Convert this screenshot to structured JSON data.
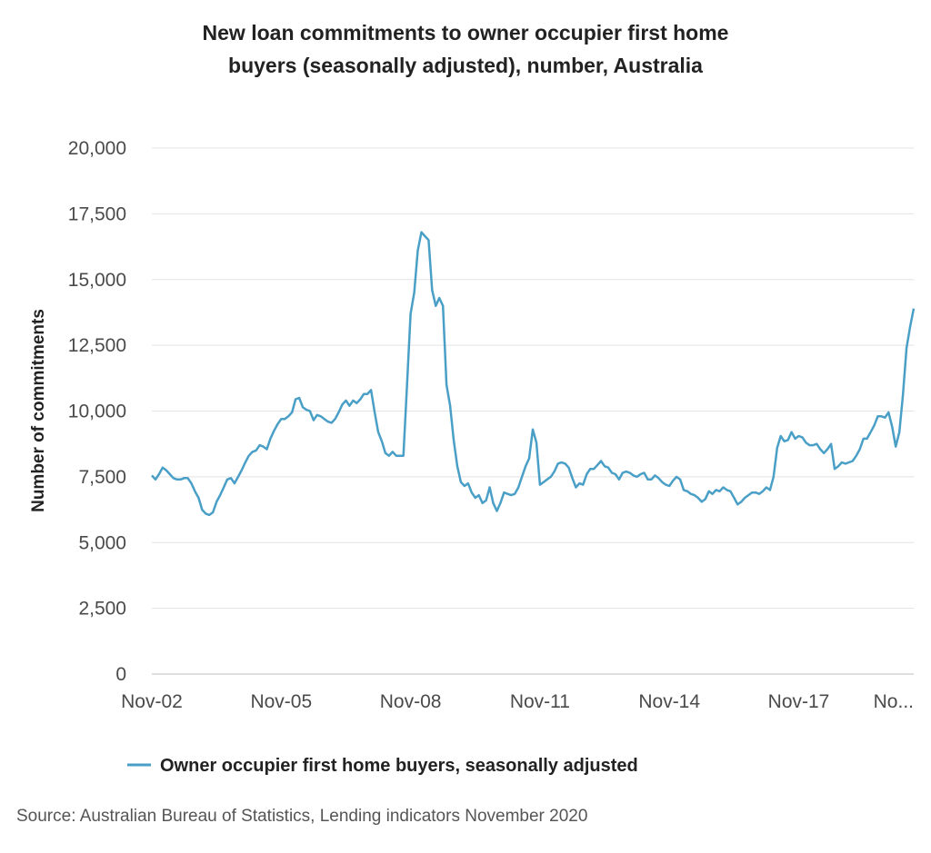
{
  "chart_data": {
    "type": "line",
    "title_lines": [
      "New loan commitments to owner occupier first home",
      "buyers (seasonally adjusted), number, Australia"
    ],
    "xlabel": "",
    "ylabel": "Number of commitments",
    "ylim": [
      0,
      20000
    ],
    "y_ticks": [
      0,
      2500,
      5000,
      7500,
      10000,
      12500,
      15000,
      17500,
      20000
    ],
    "y_tick_labels": [
      "0",
      "2,500",
      "5,000",
      "7,500",
      "10,000",
      "12,500",
      "15,000",
      "17,500",
      "20,000"
    ],
    "x_tick_labels": [
      "Nov-02",
      "Nov-05",
      "Nov-08",
      "Nov-11",
      "Nov-14",
      "Nov-17",
      "No..."
    ],
    "x_tick_dates": [
      "2002-11",
      "2005-11",
      "2008-11",
      "2011-11",
      "2014-11",
      "2017-11",
      "2020-11"
    ],
    "x_start": "2002-11",
    "grid": true,
    "legend_position": "bottom-left",
    "series": [
      {
        "name": "Owner occupier first home buyers, seasonally adjusted",
        "color": "#4a9fc7",
        "values": [
          7550,
          7400,
          7600,
          7850,
          7750,
          7600,
          7450,
          7400,
          7400,
          7450,
          7450,
          7250,
          6950,
          6700,
          6250,
          6100,
          6050,
          6150,
          6550,
          6800,
          7100,
          7400,
          7450,
          7250,
          7500,
          7750,
          8050,
          8300,
          8450,
          8500,
          8700,
          8650,
          8550,
          8950,
          9250,
          9500,
          9700,
          9700,
          9800,
          9950,
          10450,
          10500,
          10150,
          10050,
          10000,
          9650,
          9850,
          9800,
          9700,
          9600,
          9550,
          9700,
          9950,
          10250,
          10400,
          10200,
          10400,
          10300,
          10450,
          10650,
          10650,
          10800,
          9950,
          9200,
          8850,
          8400,
          8300,
          8450,
          8300,
          8300,
          8300,
          11000,
          13700,
          14500,
          16100,
          16800,
          16650,
          16500,
          14600,
          14000,
          14300,
          14000,
          11000,
          10200,
          8900,
          7900,
          7300,
          7150,
          7250,
          6900,
          6700,
          6800,
          6500,
          6600,
          7100,
          6500,
          6200,
          6500,
          6900,
          6850,
          6800,
          6850,
          7100,
          7500,
          7900,
          8200,
          9300,
          8800,
          7200,
          7300,
          7400,
          7500,
          7700,
          8000,
          8050,
          8000,
          7850,
          7450,
          7100,
          7250,
          7200,
          7600,
          7800,
          7800,
          7950,
          8100,
          7900,
          7850,
          7650,
          7600,
          7400,
          7650,
          7700,
          7650,
          7550,
          7500,
          7600,
          7650,
          7400,
          7400,
          7550,
          7450,
          7300,
          7200,
          7150,
          7350,
          7500,
          7400,
          7000,
          6950,
          6850,
          6800,
          6700,
          6550,
          6650,
          6950,
          6850,
          7000,
          6950,
          7100,
          7000,
          6950,
          6700,
          6450,
          6550,
          6700,
          6800,
          6900,
          6900,
          6850,
          6950,
          7100,
          7000,
          7500,
          8600,
          9050,
          8850,
          8900,
          9200,
          8950,
          9050,
          9000,
          8800,
          8700,
          8700,
          8750,
          8550,
          8400,
          8550,
          8750,
          7800,
          7900,
          8050,
          8000,
          8050,
          8100,
          8300,
          8550,
          8950,
          8950,
          9200,
          9450,
          9800,
          9800,
          9750,
          9950,
          9400,
          8650,
          9200,
          10600,
          12400,
          13200,
          13900
        ]
      }
    ],
    "source": "Source: Australian Bureau of Statistics, Lending indicators November 2020"
  }
}
